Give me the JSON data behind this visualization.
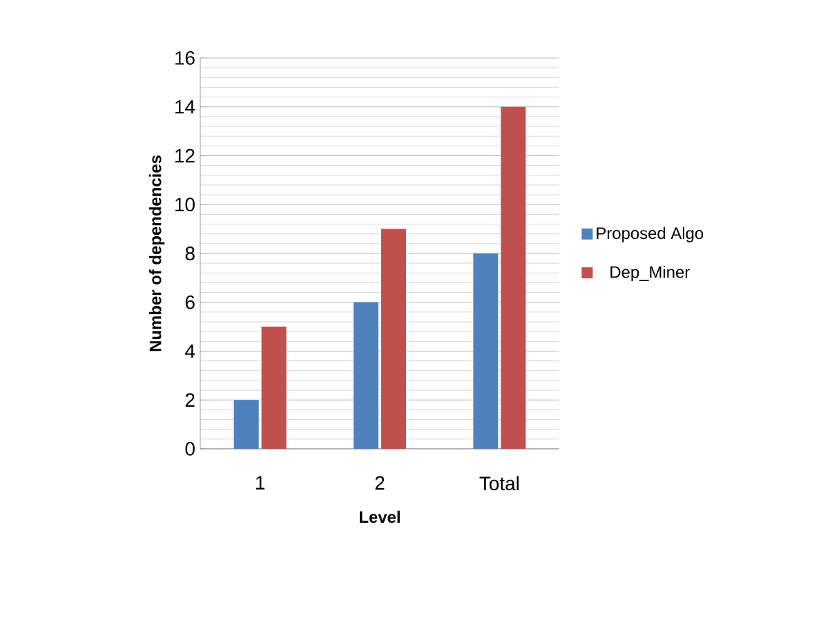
{
  "chart_data": {
    "type": "bar",
    "xlabel": "Level",
    "ylabel": "Number of dependencies",
    "categories": [
      "1",
      "2",
      "Total"
    ],
    "series": [
      {
        "name": "Proposed Algo",
        "color": "#4f81bd",
        "values": [
          2,
          6,
          8
        ]
      },
      {
        "name": "Dep_Miner",
        "color": "#c0504d",
        "values": [
          5,
          9,
          14
        ]
      }
    ],
    "ylim": [
      0,
      16
    ],
    "yticks": [
      0,
      2,
      4,
      6,
      8,
      10,
      12,
      14,
      16
    ],
    "grid": "y",
    "legend": "right"
  }
}
